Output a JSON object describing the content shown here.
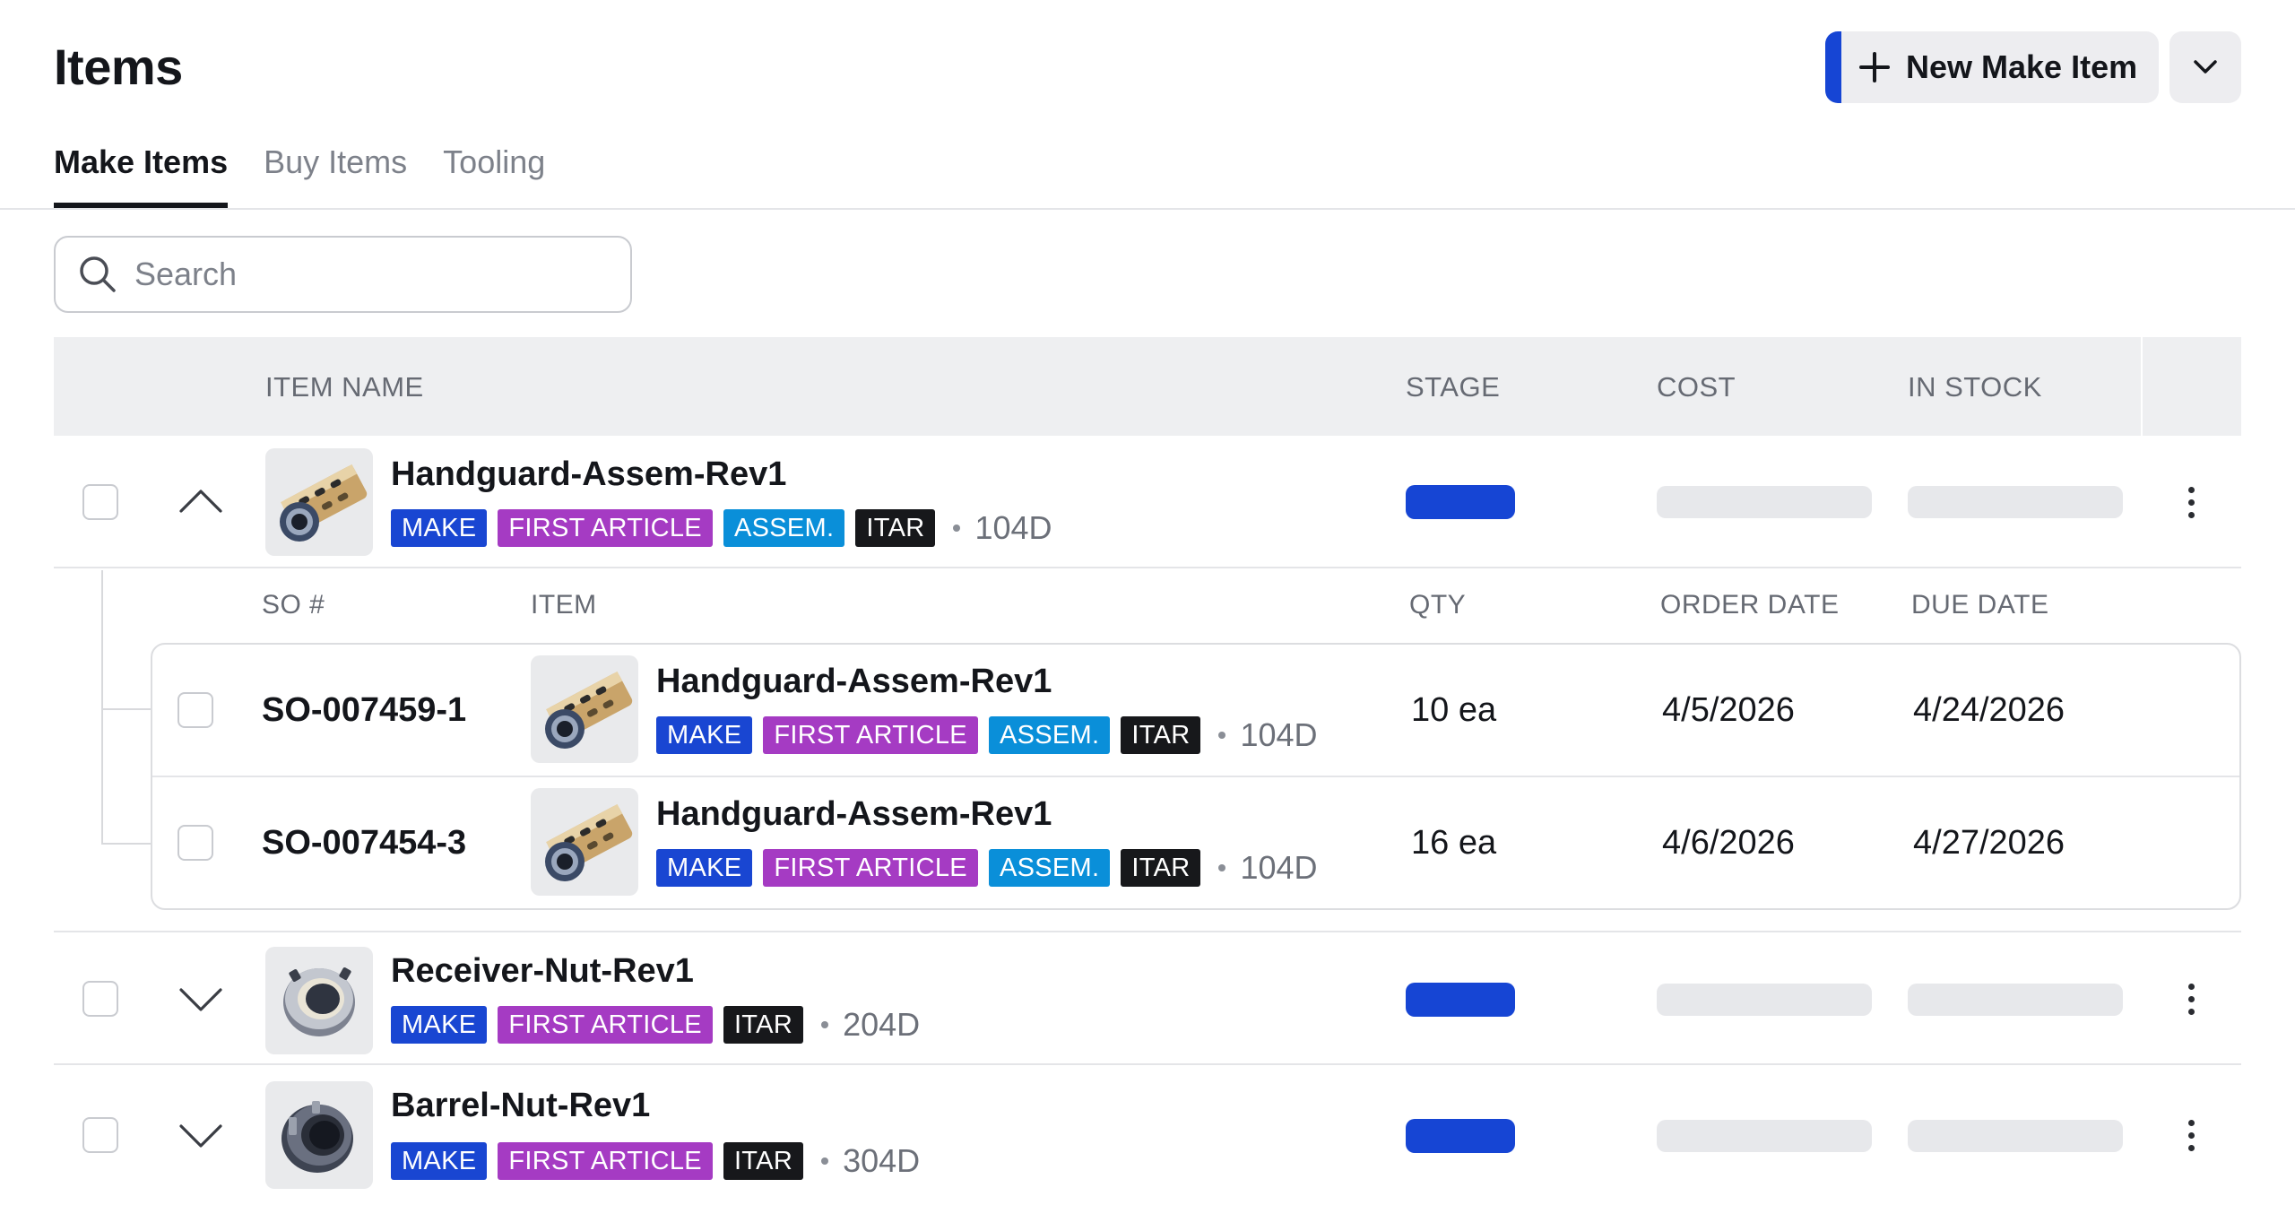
{
  "header": {
    "title": "Items",
    "new_button_label": "New Make Item"
  },
  "tabs": [
    {
      "label": "Make Items",
      "active": true
    },
    {
      "label": "Buy Items",
      "active": false
    },
    {
      "label": "Tooling",
      "active": false
    }
  ],
  "search": {
    "placeholder": "Search",
    "value": ""
  },
  "table": {
    "columns": [
      "ITEM NAME",
      "STAGE",
      "COST",
      "IN STOCK"
    ],
    "rows": [
      {
        "name": "Handguard-Assem-Rev1",
        "tags": [
          "MAKE",
          "FIRST ARTICLE",
          "ASSEM.",
          "ITAR"
        ],
        "lead_time": "104D",
        "expanded": true
      },
      {
        "name": "Receiver-Nut-Rev1",
        "tags": [
          "MAKE",
          "FIRST ARTICLE",
          "ITAR"
        ],
        "lead_time": "204D",
        "expanded": false
      },
      {
        "name": "Barrel-Nut-Rev1",
        "tags": [
          "MAKE",
          "FIRST ARTICLE",
          "ITAR"
        ],
        "lead_time": "304D",
        "expanded": false
      }
    ]
  },
  "subtable": {
    "columns": [
      "SO #",
      "ITEM",
      "QTY",
      "ORDER DATE",
      "DUE DATE"
    ],
    "rows": [
      {
        "so": "SO-007459-1",
        "name": "Handguard-Assem-Rev1",
        "tags": [
          "MAKE",
          "FIRST ARTICLE",
          "ASSEM.",
          "ITAR"
        ],
        "lead_time": "104D",
        "qty": "10 ea",
        "order_date": "4/5/2026",
        "due_date": "4/24/2026"
      },
      {
        "so": "SO-007454-3",
        "name": "Handguard-Assem-Rev1",
        "tags": [
          "MAKE",
          "FIRST ARTICLE",
          "ASSEM.",
          "ITAR"
        ],
        "lead_time": "104D",
        "qty": "16 ea",
        "order_date": "4/6/2026",
        "due_date": "4/27/2026"
      }
    ]
  },
  "colors": {
    "accent": "#1645d4",
    "tag_make": "#1946d2",
    "tag_first_article": "#a53bc3",
    "tag_assem": "#0a8fd9",
    "tag_itar": "#17181b"
  },
  "icons": {
    "new_button": "plus-icon",
    "split_button": "chevron-down-icon",
    "search": "search-icon",
    "row_menu": "kebab-icon"
  }
}
